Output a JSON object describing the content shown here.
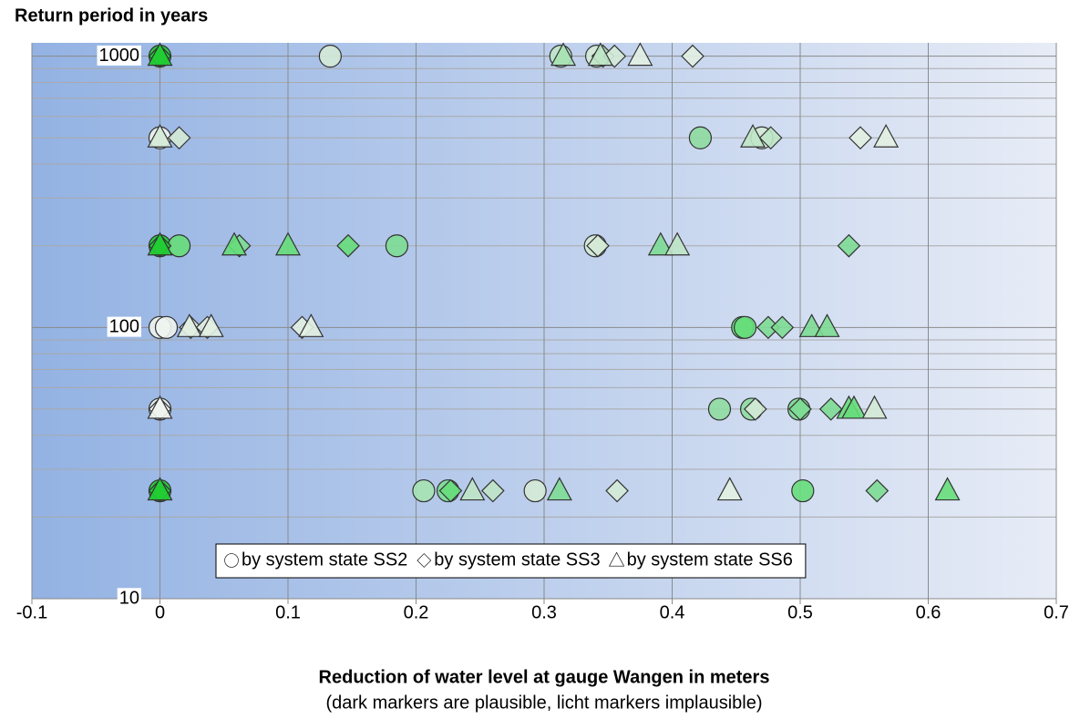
{
  "chart_data": {
    "type": "scatter",
    "title": "Return period in years",
    "x_label": "Reduction of water level at gauge Wangen in meters",
    "x_sublabel": "(dark markers are plausible, licht markers implausible)",
    "xlim": [
      -0.1,
      0.7
    ],
    "xticks": [
      -0.1,
      0,
      0.1,
      0.2,
      0.3,
      0.4,
      0.5,
      0.6,
      0.7
    ],
    "ylim": [
      10,
      1120
    ],
    "yticks": [
      10,
      100,
      1000
    ],
    "yminor": [
      20,
      30,
      40,
      50,
      60,
      70,
      80,
      90,
      200,
      300,
      400,
      500,
      600,
      700,
      800,
      900
    ],
    "ylog": true,
    "grid": true,
    "legend": "bottom-right",
    "series": [
      {
        "name": "by system state SS2",
        "marker": "circle",
        "x": [
          0,
          0.133,
          0.313,
          0.341,
          0,
          0.422,
          0.47,
          0,
          0.015,
          0.185,
          0.34,
          0,
          0.005,
          0.455,
          0.457,
          0,
          0.437,
          0.462,
          0.499,
          0,
          0.206,
          0.225,
          0.293,
          0.502
        ],
        "values": [
          1000,
          1000,
          1000,
          1000,
          500,
          500,
          500,
          200,
          200,
          200,
          200,
          100,
          100,
          100,
          100,
          50,
          50,
          50,
          50,
          25,
          25,
          25,
          25,
          25
        ],
        "colors": [
          "#22cc33",
          "#d4ead6",
          "#bfe6c6",
          "#d4ead6",
          "#eef4ee",
          "#8fdca0",
          "#d4ead6",
          "#22cc33",
          "#66dd7a",
          "#7ddc93",
          "#d4ead6",
          "#eef4ee",
          "#eef4ee",
          "#66dd7a",
          "#66dd7a",
          "#eef4ee",
          "#8fdca0",
          "#8fdca0",
          "#7ddc93",
          "#22cc33",
          "#a6e2b2",
          "#7ddc93",
          "#d4ead6",
          "#66dd7a"
        ]
      },
      {
        "name": "by system state SS3",
        "marker": "diamond",
        "x": [
          0,
          0.346,
          0.355,
          0.416,
          0.015,
          0.477,
          0.547,
          0,
          0.062,
          0.147,
          0.342,
          0.538,
          0.024,
          0.037,
          0.111,
          0.475,
          0.486,
          0,
          0.465,
          0.5,
          0.524,
          0,
          0.227,
          0.26,
          0.357,
          0.56
        ],
        "values": [
          1000,
          1000,
          1000,
          1000,
          500,
          500,
          500,
          200,
          200,
          200,
          200,
          200,
          100,
          100,
          100,
          100,
          100,
          50,
          50,
          50,
          50,
          25,
          25,
          25,
          25,
          25
        ],
        "colors": [
          "#22cc33",
          "#bfe6c6",
          "#d4ead6",
          "#e2efe2",
          "#d4ead6",
          "#bfe6c6",
          "#e2efe2",
          "#22cc33",
          "#7ddc93",
          "#66dd7a",
          "#d4ead6",
          "#7ddc93",
          "#e2efe2",
          "#e2efe2",
          "#e2efe2",
          "#7ddc93",
          "#7ddc93",
          "#eef4ee",
          "#d4ead6",
          "#7ddc93",
          "#7ddc93",
          "#22cc33",
          "#66dd7a",
          "#bfe6c6",
          "#d4ead6",
          "#7ddc93"
        ]
      },
      {
        "name": "by system state SS6",
        "marker": "triangle",
        "x": [
          0,
          0.315,
          0.344,
          0.375,
          0,
          0.463,
          0.567,
          0,
          0.058,
          0.1,
          0.391,
          0.404,
          0.023,
          0.04,
          0.118,
          0.509,
          0.521,
          0,
          0.538,
          0.542,
          0.558,
          0,
          0.244,
          0.312,
          0.445,
          0.615
        ],
        "values": [
          1000,
          1000,
          1000,
          1000,
          500,
          500,
          500,
          200,
          200,
          200,
          200,
          200,
          100,
          100,
          100,
          100,
          100,
          50,
          50,
          50,
          50,
          25,
          25,
          25,
          25,
          25
        ],
        "colors": [
          "#22cc33",
          "#a6e2b2",
          "#bfe6c6",
          "#e2efe2",
          "#d4ead6",
          "#bfe6c6",
          "#e2efe2",
          "#22cc33",
          "#66dd7a",
          "#66dd7a",
          "#7ddc93",
          "#bfe6c6",
          "#e2efe2",
          "#e2efe2",
          "#e2efe2",
          "#7ddc93",
          "#7ddc93",
          "#eef4ee",
          "#66dd7a",
          "#66dd7a",
          "#d4ead6",
          "#22cc33",
          "#bfe6c6",
          "#7ddc93",
          "#e2efe2",
          "#66dd7a"
        ]
      }
    ]
  }
}
